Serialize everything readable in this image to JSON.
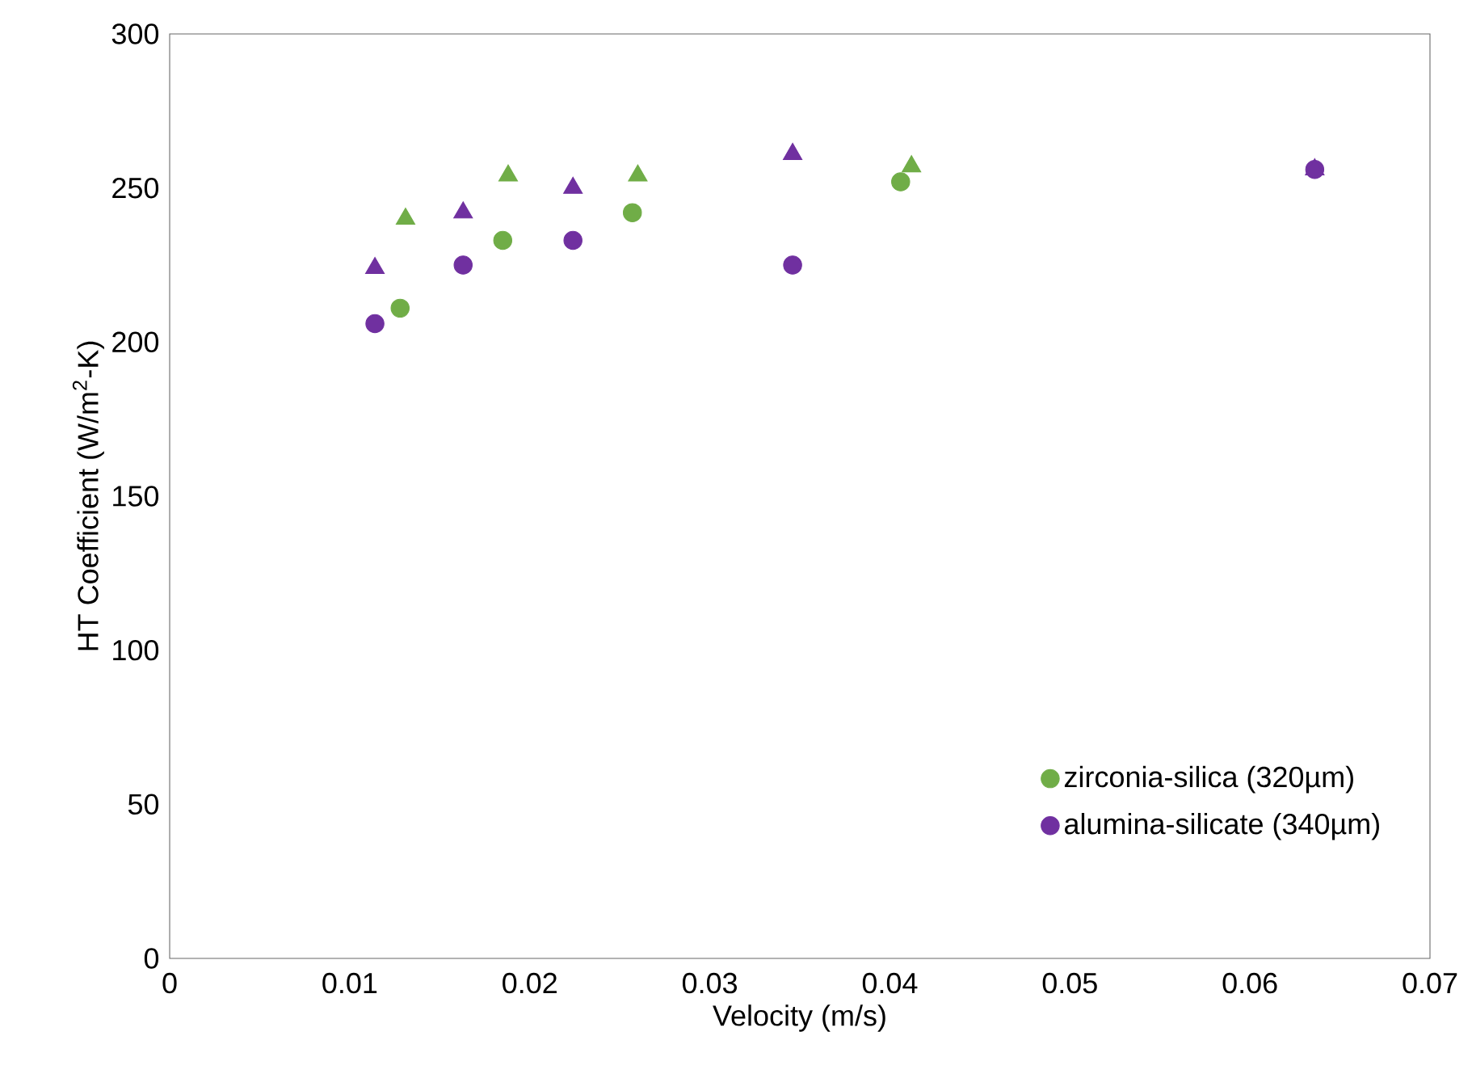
{
  "chart_data": {
    "type": "scatter",
    "xlabel": "Velocity (m/s)",
    "ylabel": "HT Coefficient (W/m$^{2}$-K)",
    "xlim": [
      0,
      0.07
    ],
    "xticks": [
      0,
      0.01,
      0.02,
      0.03,
      0.04,
      0.05,
      0.06,
      0.07
    ],
    "ylim": [
      0,
      300
    ],
    "yticks": [
      0,
      50,
      100,
      150,
      200,
      250,
      300
    ],
    "grid": false,
    "legend": "bottom right",
    "series": [
      {
        "name": "zirconia-silica (320µm)",
        "color": "#70ad47",
        "marker": "circle",
        "x": [
          0.0128,
          0.0185,
          0.0257,
          0.0406
        ],
        "values": [
          211,
          233,
          242,
          252
        ]
      },
      {
        "name": "alumina-silicate (340µm)",
        "color": "#7030a0",
        "marker": "circle",
        "x": [
          0.0114,
          0.0163,
          0.0224,
          0.0346,
          0.0636
        ],
        "values": [
          206,
          225,
          233,
          225,
          256
        ]
      },
      {
        "color": "#70ad47",
        "marker": "triangle",
        "x": [
          0.0131,
          0.0188,
          0.026,
          0.0412
        ],
        "values": [
          240,
          254,
          254,
          257
        ]
      },
      {
        "color": "#7030a0",
        "marker": "triangle",
        "x": [
          0.0114,
          0.0163,
          0.0224,
          0.0346,
          0.0636
        ],
        "values": [
          224,
          242,
          250,
          261,
          256
        ]
      }
    ]
  }
}
